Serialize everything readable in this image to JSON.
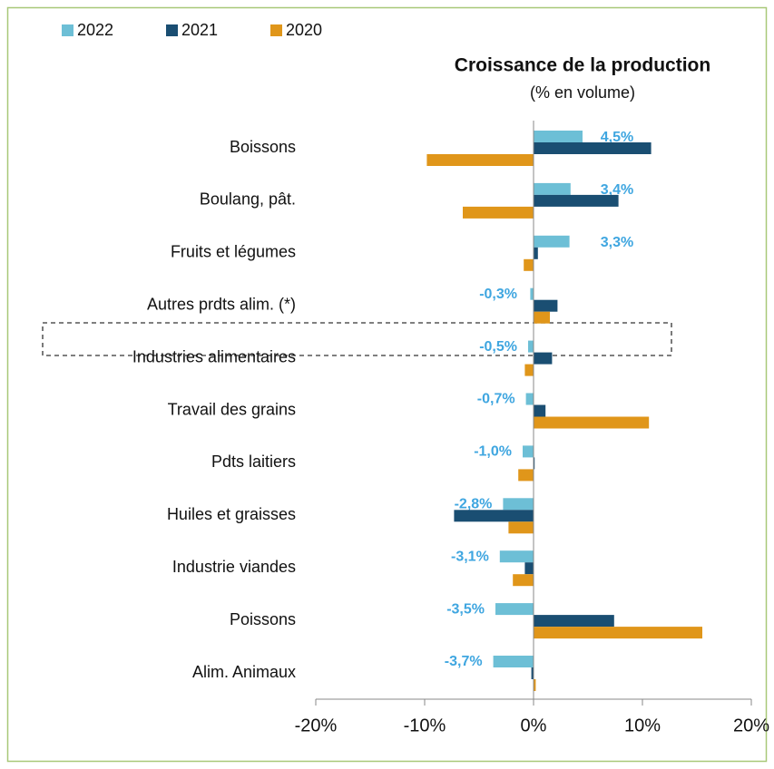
{
  "chart_data": {
    "type": "bar",
    "orientation": "horizontal",
    "title": "Croissance de la production",
    "subtitle": "(% en volume)",
    "categories": [
      "Boissons",
      "Boulang, pât.",
      "Fruits et légumes",
      "Autres prdts alim. (*)",
      "Industries alimentaires",
      "Travail des grains",
      "Pdts laitiers",
      "Huiles et graisses",
      "Industrie viandes",
      "Poissons",
      "Alim. Animaux"
    ],
    "series": [
      {
        "name": "2022",
        "color": "#6dbfd6",
        "values": [
          4.5,
          3.4,
          3.3,
          -0.3,
          -0.5,
          -0.7,
          -1.0,
          -2.8,
          -3.1,
          -3.5,
          -3.7
        ],
        "value_labels": [
          "4,5%",
          "3,4%",
          "3,3%",
          "-0,3%",
          "-0,5%",
          "-0,7%",
          "-1,0%",
          "-2,8%",
          "-3,1%",
          "-3,5%",
          "-3,7%"
        ]
      },
      {
        "name": "2021",
        "color": "#1a4e72",
        "values": [
          10.8,
          7.8,
          0.4,
          2.2,
          1.7,
          1.1,
          0.1,
          -7.3,
          -0.8,
          7.4,
          -0.2
        ]
      },
      {
        "name": "2020",
        "color": "#e0961a",
        "values": [
          -9.8,
          -6.5,
          -0.9,
          1.5,
          -0.8,
          10.6,
          -1.4,
          -2.3,
          -1.9,
          15.5,
          0.2
        ]
      }
    ],
    "xlim": [
      -20,
      20
    ],
    "xticks": [
      {
        "value": -20,
        "label": "-20%"
      },
      {
        "value": -10,
        "label": "-10%"
      },
      {
        "value": 0,
        "label": "0%"
      },
      {
        "value": 10,
        "label": "10%"
      },
      {
        "value": 20,
        "label": "20%"
      }
    ],
    "legend": "top-left"
  }
}
